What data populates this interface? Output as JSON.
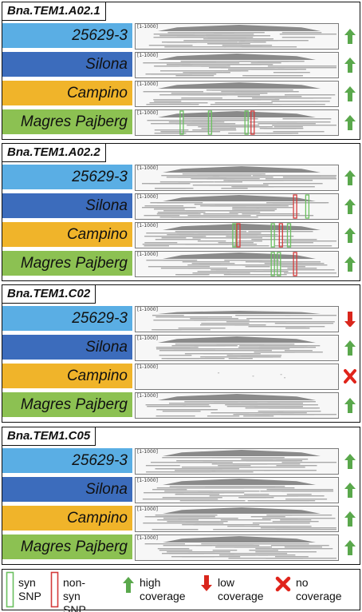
{
  "colors": {
    "c25629": "#5aaee4",
    "silona": "#3c6cbc",
    "campino": "#f0b42a",
    "magres": "#8cc152",
    "arrow_up": "#5aa84c",
    "arrow_down": "#d9261c",
    "no_cov": "#e0241b",
    "syn_snp": "#6bc060",
    "nonsyn_snp": "#d43b3b"
  },
  "panels": [
    {
      "gene": "Bna.TEM1.A02.1",
      "rows": [
        {
          "name": "25629-3",
          "color": "#5aaee4",
          "range": "[1-1000]",
          "coverage": "high",
          "snps": []
        },
        {
          "name": "Silona",
          "color": "#3c6cbc",
          "range": "[1-1000]",
          "coverage": "high",
          "snps": []
        },
        {
          "name": "Campino",
          "color": "#f0b42a",
          "range": "[1-1000]",
          "coverage": "high",
          "snps": []
        },
        {
          "name": "Magres Pajberg",
          "color": "#8cc152",
          "range": "[1-1000]",
          "coverage": "high",
          "snps": [
            {
              "type": "syn",
              "pos": 0.22
            },
            {
              "type": "syn",
              "pos": 0.36
            },
            {
              "type": "syn",
              "pos": 0.54
            },
            {
              "type": "nonsyn",
              "pos": 0.57
            }
          ]
        }
      ]
    },
    {
      "gene": "Bna.TEM1.A02.2",
      "rows": [
        {
          "name": "25629-3",
          "color": "#5aaee4",
          "range": "[1-1000]",
          "coverage": "high",
          "snps": []
        },
        {
          "name": "Silona",
          "color": "#3c6cbc",
          "range": "[1-1000]",
          "coverage": "high",
          "snps": [
            {
              "type": "nonsyn",
              "pos": 0.78
            },
            {
              "type": "syn",
              "pos": 0.84
            }
          ]
        },
        {
          "name": "Campino",
          "color": "#f0b42a",
          "range": "[1-1000]",
          "coverage": "high",
          "snps": [
            {
              "type": "syn",
              "pos": 0.48
            },
            {
              "type": "nonsyn",
              "pos": 0.5
            },
            {
              "type": "syn",
              "pos": 0.67
            },
            {
              "type": "nonsyn",
              "pos": 0.71
            },
            {
              "type": "syn",
              "pos": 0.75
            }
          ]
        },
        {
          "name": "Magres Pajberg",
          "color": "#8cc152",
          "range": "[1-1000]",
          "coverage": "high",
          "snps": [
            {
              "type": "syn",
              "pos": 0.67
            },
            {
              "type": "syn",
              "pos": 0.7
            },
            {
              "type": "nonsyn",
              "pos": 0.78
            }
          ]
        }
      ]
    },
    {
      "gene": "Bna.TEM1.C02",
      "rows": [
        {
          "name": "25629-3",
          "color": "#5aaee4",
          "range": "[1-1000]",
          "coverage": "low",
          "snps": []
        },
        {
          "name": "Silona",
          "color": "#3c6cbc",
          "range": "[1-1000]",
          "coverage": "high",
          "snps": []
        },
        {
          "name": "Campino",
          "color": "#f0b42a",
          "range": "[1-1000]",
          "coverage": "none",
          "snps": []
        },
        {
          "name": "Magres Pajberg",
          "color": "#8cc152",
          "range": "[1-1000]",
          "coverage": "high",
          "snps": []
        }
      ]
    },
    {
      "gene": "Bna.TEM1.C05",
      "rows": [
        {
          "name": "25629-3",
          "color": "#5aaee4",
          "range": "[1-1000]",
          "coverage": "high",
          "snps": []
        },
        {
          "name": "Silona",
          "color": "#3c6cbc",
          "range": "[1-1000]",
          "coverage": "high",
          "snps": []
        },
        {
          "name": "Campino",
          "color": "#f0b42a",
          "range": "[1-1000]",
          "coverage": "high",
          "snps": []
        },
        {
          "name": "Magres Pajberg",
          "color": "#8cc152",
          "range": "[1-1000]",
          "coverage": "high",
          "snps": []
        }
      ]
    }
  ],
  "legend": {
    "syn_label_1": "syn",
    "syn_label_2": "SNP",
    "nonsyn_label_1": "non-syn",
    "nonsyn_label_2": "SNP",
    "high_label_1": "high",
    "high_label_2": "coverage",
    "low_label_1": "low",
    "low_label_2": "coverage",
    "no_label_1": "no",
    "no_label_2": "coverage"
  }
}
